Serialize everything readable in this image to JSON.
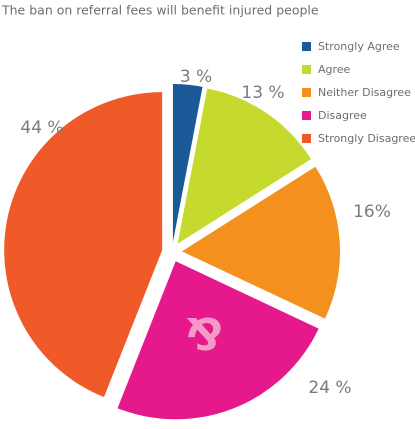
{
  "chart_data": {
    "type": "pie",
    "title": "The ban on referral fees will benefit injured people",
    "categories": [
      "Strongly Agree",
      "Agree",
      "Neither Disagree",
      "Disagree",
      "Strongly Disagree"
    ],
    "values": [
      3,
      13,
      16,
      24,
      44
    ],
    "value_labels": [
      "3 %",
      "13 %",
      "16%",
      "24 %",
      "44 %"
    ],
    "colors": [
      "#1b5a98",
      "#c6d92e",
      "#f3901e",
      "#e5198b",
      "#f05a28"
    ],
    "watermark": "&"
  }
}
